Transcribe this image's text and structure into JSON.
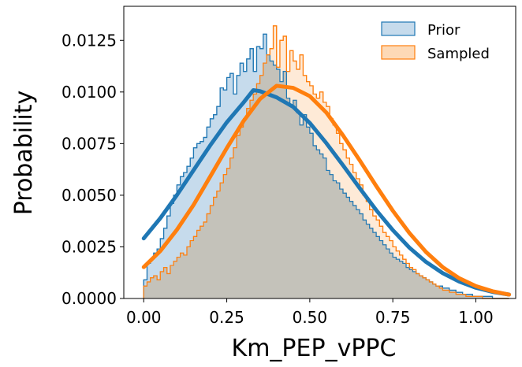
{
  "chart_data": {
    "type": "area",
    "title": "",
    "xlabel": "Km_PEP_vPPC",
    "ylabel": "Probability",
    "xlim": [
      -0.06,
      1.12
    ],
    "ylim": [
      0,
      0.01415
    ],
    "xticks": [
      0.0,
      0.25,
      0.5,
      0.75,
      1.0
    ],
    "xtick_labels": [
      "0.00",
      "0.25",
      "0.50",
      "0.75",
      "1.00"
    ],
    "yticks": [
      0.0,
      0.0025,
      0.005,
      0.0075,
      0.01,
      0.0125
    ],
    "ytick_labels": [
      "0.0000",
      "0.0025",
      "0.0050",
      "0.0075",
      "0.0100",
      "0.0125"
    ],
    "grid": false,
    "legend_position": "top-right",
    "bin_width": 0.01,
    "bin_start": 0.0,
    "series": [
      {
        "name": "Prior",
        "kind": "histogram",
        "color": "#1f77b4",
        "fill": "#c6dbec",
        "values": [
          0.0009,
          0.0017,
          0.0019,
          0.0022,
          0.0024,
          0.0029,
          0.0034,
          0.004,
          0.0046,
          0.005,
          0.0055,
          0.0059,
          0.0061,
          0.0064,
          0.0068,
          0.0073,
          0.0075,
          0.0076,
          0.0078,
          0.0083,
          0.0087,
          0.0089,
          0.0093,
          0.0102,
          0.0101,
          0.0107,
          0.0109,
          0.0099,
          0.0108,
          0.0114,
          0.011,
          0.0116,
          0.0121,
          0.011,
          0.0122,
          0.0121,
          0.0128,
          0.0118,
          0.0115,
          0.0113,
          0.0111,
          0.0105,
          0.011,
          0.0097,
          0.0093,
          0.0096,
          0.009,
          0.0084,
          0.0089,
          0.0083,
          0.008,
          0.0074,
          0.0072,
          0.007,
          0.0068,
          0.0062,
          0.006,
          0.0057,
          0.0056,
          0.0053,
          0.0051,
          0.0049,
          0.0047,
          0.0045,
          0.0043,
          0.0041,
          0.0038,
          0.0036,
          0.0034,
          0.0032,
          0.003,
          0.0028,
          0.0026,
          0.0024,
          0.0022,
          0.002,
          0.0019,
          0.0018,
          0.0017,
          0.0015,
          0.0014,
          0.0013,
          0.0012,
          0.0011,
          0.001,
          0.0009,
          0.0008,
          0.0007,
          0.0006,
          0.0006,
          0.0005,
          0.0005,
          0.0004,
          0.0004,
          0.0003,
          0.0003,
          0.0002,
          0.0002,
          0.0002,
          0.0001,
          0.0001,
          0.0001,
          0.0001,
          0.0001,
          0.0001,
          0.0,
          0.0,
          0.0,
          0.0,
          0.0
        ]
      },
      {
        "name": "Sampled",
        "kind": "histogram",
        "color": "#ff7f0e",
        "fill": "#fdd9b6",
        "values": [
          0.0006,
          0.0008,
          0.001,
          0.0011,
          0.0009,
          0.0013,
          0.0015,
          0.0012,
          0.0016,
          0.0018,
          0.002,
          0.0022,
          0.0021,
          0.0025,
          0.0028,
          0.003,
          0.0033,
          0.0035,
          0.0037,
          0.0041,
          0.0045,
          0.0049,
          0.0052,
          0.0056,
          0.006,
          0.0063,
          0.0068,
          0.0073,
          0.0079,
          0.0083,
          0.0087,
          0.0092,
          0.0096,
          0.0099,
          0.0104,
          0.0108,
          0.0114,
          0.0118,
          0.0121,
          0.0132,
          0.0112,
          0.0125,
          0.0127,
          0.011,
          0.012,
          0.0115,
          0.0111,
          0.0118,
          0.0108,
          0.0105,
          0.0103,
          0.0099,
          0.0097,
          0.01,
          0.0095,
          0.0093,
          0.0087,
          0.0084,
          0.008,
          0.0075,
          0.0072,
          0.0068,
          0.0065,
          0.0061,
          0.0058,
          0.0055,
          0.005,
          0.0047,
          0.0043,
          0.004,
          0.0038,
          0.0035,
          0.0032,
          0.003,
          0.0028,
          0.0025,
          0.0023,
          0.0021,
          0.0019,
          0.0017,
          0.0015,
          0.0014,
          0.0012,
          0.0011,
          0.001,
          0.0009,
          0.0008,
          0.0007,
          0.0006,
          0.0005,
          0.0004,
          0.0004,
          0.0003,
          0.0003,
          0.0002,
          0.0002,
          0.0002,
          0.0001,
          0.0001,
          0.0001,
          0.0001,
          0.0001,
          0.0,
          0.0,
          0.0,
          0.0,
          0.0,
          0.0,
          0.0,
          0.0
        ]
      },
      {
        "name": "Prior fit",
        "kind": "curve",
        "color": "#1f77b4",
        "x": [
          0.0,
          0.05,
          0.1,
          0.15,
          0.2,
          0.25,
          0.3,
          0.33,
          0.35,
          0.4,
          0.45,
          0.5,
          0.55,
          0.6,
          0.65,
          0.7,
          0.75,
          0.8,
          0.85,
          0.9,
          0.95,
          1.0,
          1.05,
          1.1
        ],
        "y": [
          0.00291,
          0.00389,
          0.00501,
          0.00621,
          0.00741,
          0.00853,
          0.00948,
          0.01009,
          0.01004,
          0.00974,
          0.00928,
          0.0085,
          0.00752,
          0.00645,
          0.00535,
          0.00428,
          0.00331,
          0.00246,
          0.00177,
          0.00123,
          0.00082,
          0.00052,
          0.00032,
          0.00019
        ]
      },
      {
        "name": "Sampled fit",
        "kind": "curve",
        "color": "#ff7f0e",
        "x": [
          0.0,
          0.05,
          0.1,
          0.15,
          0.2,
          0.25,
          0.3,
          0.35,
          0.4,
          0.45,
          0.5,
          0.55,
          0.6,
          0.65,
          0.7,
          0.75,
          0.8,
          0.85,
          0.9,
          0.95,
          1.0,
          1.05,
          1.1
        ],
        "y": [
          0.00152,
          0.0023,
          0.00333,
          0.00453,
          0.0059,
          0.00728,
          0.00858,
          0.00966,
          0.0103,
          0.0102,
          0.0098,
          0.009,
          0.0079,
          0.0067,
          0.00545,
          0.00425,
          0.00317,
          0.00225,
          0.00152,
          0.00098,
          0.0006,
          0.00035,
          0.00019
        ]
      }
    ]
  }
}
